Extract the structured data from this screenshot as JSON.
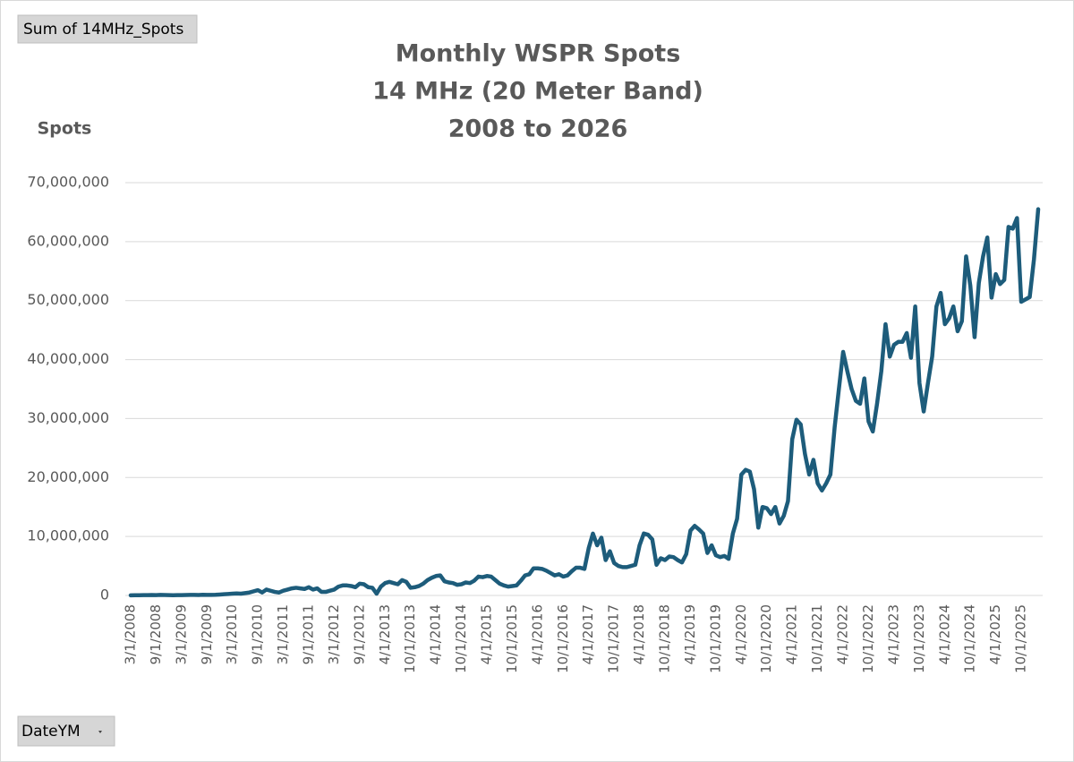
{
  "pivot_buttons": {
    "values_field": "Sum of 14MHz_Spots",
    "axis_field": "DateYM"
  },
  "chart_data": {
    "type": "line",
    "title": [
      "Monthly WSPR Spots",
      "14 MHz (20 Meter Band)",
      "2008 to 2026"
    ],
    "y_label": "Spots",
    "color": "#1d5c7b",
    "grid": true,
    "ylim": [
      0,
      70000000
    ],
    "yticks": [
      0,
      {
        "value": 10000000,
        "label": "10,000,000"
      },
      {
        "value": 20000000,
        "label": "20,000,000"
      },
      {
        "value": 30000000,
        "label": "30,000,000"
      },
      {
        "value": 40000000,
        "label": "40,000,000"
      },
      {
        "value": 50000000,
        "label": "50,000,000"
      },
      {
        "value": 60000000,
        "label": "60,000,000"
      },
      {
        "value": 70000000,
        "label": "70,000,000"
      }
    ],
    "categories": [
      "3/1/2008",
      null,
      null,
      null,
      null,
      null,
      "9/1/2008",
      null,
      null,
      null,
      null,
      null,
      "3/1/2009",
      null,
      null,
      null,
      null,
      null,
      "9/1/2009",
      null,
      null,
      null,
      null,
      null,
      "3/1/2010",
      null,
      null,
      null,
      null,
      null,
      "9/1/2010",
      null,
      null,
      null,
      null,
      null,
      "3/1/2011",
      null,
      null,
      null,
      null,
      null,
      "9/1/2011",
      null,
      null,
      null,
      null,
      null,
      "3/1/2012",
      null,
      null,
      null,
      null,
      null,
      "9/1/2012",
      null,
      null,
      null,
      null,
      null,
      "4/1/2013",
      null,
      null,
      null,
      null,
      null,
      "10/1/2013",
      null,
      null,
      null,
      null,
      null,
      "4/1/2014",
      null,
      null,
      null,
      null,
      null,
      "10/1/2014",
      null,
      null,
      null,
      null,
      null,
      "4/1/2015",
      null,
      null,
      null,
      null,
      null,
      "10/1/2015",
      null,
      null,
      null,
      null,
      null,
      "4/1/2016",
      null,
      null,
      null,
      null,
      null,
      "10/1/2016",
      null,
      null,
      null,
      null,
      null,
      "4/1/2017",
      null,
      null,
      null,
      null,
      null,
      "10/1/2017",
      null,
      null,
      null,
      null,
      null,
      "4/1/2018",
      null,
      null,
      null,
      null,
      null,
      "10/1/2018",
      null,
      null,
      null,
      null,
      null,
      "4/1/2019",
      null,
      null,
      null,
      null,
      null,
      "10/1/2019",
      null,
      null,
      null,
      null,
      null,
      "4/1/2020",
      null,
      null,
      null,
      null,
      null,
      "10/1/2020",
      null,
      null,
      null,
      null,
      null,
      "4/1/2021",
      null,
      null,
      null,
      null,
      null,
      "10/1/2021",
      null,
      null,
      null,
      null,
      null,
      "4/1/2022",
      null,
      null,
      null,
      null,
      null,
      "10/1/2022",
      null,
      null,
      null,
      null,
      null,
      "4/1/2023",
      null,
      null,
      null,
      null,
      null,
      "10/1/2023",
      null,
      null,
      null,
      null,
      null,
      "4/1/2024",
      null,
      null,
      null,
      null,
      null,
      "10/1/2024",
      null,
      null,
      null,
      null,
      null,
      "4/1/2025",
      null,
      null,
      null,
      null,
      null,
      "10/1/2025",
      null,
      null,
      null,
      null
    ],
    "values": [
      20000,
      30000,
      40000,
      60000,
      50000,
      80000,
      60000,
      90000,
      70000,
      50000,
      40000,
      60000,
      50000,
      80000,
      90000,
      100000,
      80000,
      120000,
      100000,
      90000,
      110000,
      150000,
      200000,
      250000,
      300000,
      350000,
      300000,
      400000,
      500000,
      700000,
      900000,
      500000,
      1000000,
      800000,
      600000,
      500000,
      800000,
      1000000,
      1200000,
      1300000,
      1200000,
      1100000,
      1400000,
      1000000,
      1200000,
      600000,
      600000,
      800000,
      1000000,
      1500000,
      1700000,
      1700000,
      1600000,
      1400000,
      2000000,
      1900000,
      1400000,
      1300000,
      300000,
      1500000,
      2100000,
      2300000,
      2100000,
      1900000,
      2600000,
      2300000,
      1300000,
      1400000,
      1600000,
      2000000,
      2600000,
      3000000,
      3300000,
      3400000,
      2400000,
      2200000,
      2100000,
      1800000,
      1900000,
      2200000,
      2100000,
      2500000,
      3200000,
      3100000,
      3300000,
      3200000,
      2600000,
      2000000,
      1700000,
      1500000,
      1600000,
      1700000,
      2500000,
      3400000,
      3600000,
      4600000,
      4600000,
      4500000,
      4200000,
      3800000,
      3400000,
      3600000,
      3200000,
      3400000,
      4100000,
      4700000,
      4700000,
      4500000,
      8000000,
      10500000,
      8500000,
      9800000,
      6000000,
      7500000,
      5500000,
      5000000,
      4800000,
      4800000,
      5000000,
      5200000,
      8500000,
      10500000,
      10300000,
      9500000,
      5200000,
      6300000,
      6000000,
      6600000,
      6500000,
      6000000,
      5600000,
      7000000,
      11000000,
      11800000,
      11200000,
      10500000,
      7200000,
      8500000,
      6800000,
      6500000,
      6700000,
      6200000,
      10500000,
      13000000,
      20500000,
      21300000,
      21000000,
      18000000,
      11500000,
      15000000,
      14800000,
      13800000,
      15000000,
      12200000,
      13500000,
      16000000,
      26500000,
      29800000,
      29000000,
      24000000,
      20500000,
      23000000,
      19000000,
      17800000,
      19000000,
      20500000,
      28500000,
      35000000,
      41300000,
      38000000,
      35000000,
      33000000,
      32500000,
      36800000,
      29500000,
      27800000,
      32500000,
      38000000,
      46000000,
      40500000,
      42500000,
      43000000,
      43000000,
      44500000,
      40300000,
      49000000,
      36000000,
      31200000,
      36000000,
      40500000,
      49000000,
      51300000,
      46000000,
      47000000,
      49000000,
      44800000,
      46500000,
      57500000,
      52500000,
      43800000,
      53000000,
      57500000,
      60700000,
      50500000,
      54500000,
      52800000,
      53500000,
      62500000,
      62200000,
      64000000,
      49800000,
      50200000,
      50600000,
      57000000,
      65500000
    ]
  }
}
